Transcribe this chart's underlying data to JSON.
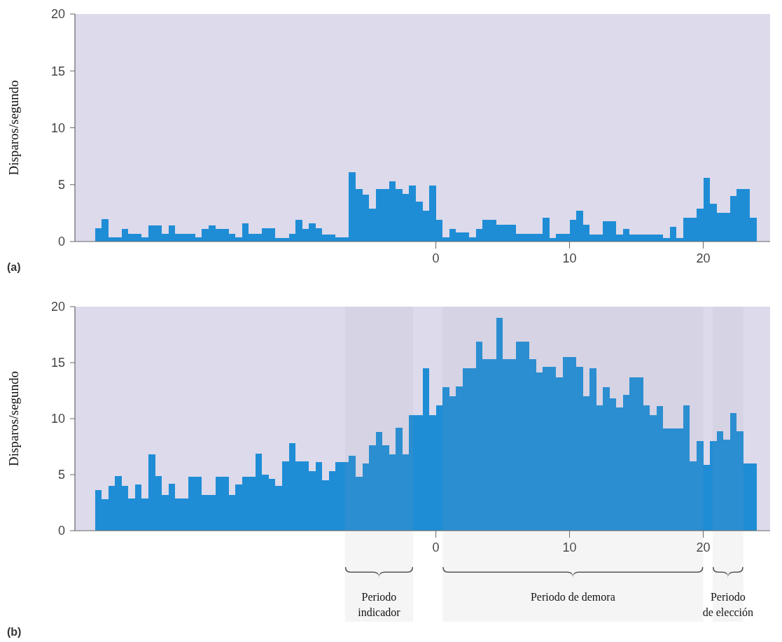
{
  "chart_data": [
    {
      "type": "histogram",
      "ylabel": "Disparos/segundo",
      "color": "#1f8dd6",
      "bins": [
        -25.5,
        -25,
        -24.5,
        -24,
        -23.5,
        -23,
        -22.5,
        -22,
        -21.5,
        -21,
        -20.5,
        -20,
        -19.5,
        -19,
        -18.5,
        -18,
        -17.5,
        -17,
        -16.5,
        -16,
        -15.5,
        -15,
        -14.5,
        -14,
        -13.5,
        -13,
        -12.5,
        -12,
        -11.5,
        -11,
        -10.5,
        -10,
        -9.5,
        -9,
        -8.5,
        -8,
        -7.5,
        -7,
        -6.5,
        -6,
        -5.5,
        -5,
        -4.5,
        -4,
        -3.5,
        -3,
        -2.5,
        -2,
        -1.5,
        -1,
        -0.5,
        0,
        0.5,
        1,
        1.5,
        2,
        2.5,
        3,
        3.5,
        4,
        4.5,
        5,
        5.5,
        6,
        6.5,
        7,
        7.5,
        8,
        8.5,
        9,
        9.5,
        10,
        10.5,
        11,
        11.5,
        12,
        12.5,
        13,
        13.5,
        14,
        14.5,
        15,
        15.5,
        16,
        16.5,
        17,
        17.5,
        18,
        18.5,
        19,
        19.5,
        20,
        20.5,
        21,
        21.5,
        22,
        22.5,
        23,
        23.5,
        24
      ],
      "values": [
        1.2,
        2.0,
        0.4,
        0.4,
        1.1,
        0.7,
        0.7,
        0.4,
        1.4,
        1.4,
        0.7,
        1.4,
        0.7,
        0.7,
        0.7,
        0.4,
        1.1,
        1.4,
        1.1,
        1.1,
        0.7,
        0.4,
        1.6,
        0.7,
        0.7,
        1.2,
        1.2,
        0.3,
        0.3,
        0.7,
        1.9,
        1.1,
        1.6,
        1.2,
        0.6,
        0.6,
        0.4,
        0.4,
        6.1,
        4.6,
        4.1,
        2.9,
        4.6,
        4.6,
        5.3,
        4.6,
        4.2,
        4.9,
        3.5,
        2.7,
        4.9,
        1.9,
        0.4,
        1.1,
        0.8,
        0.8,
        0.4,
        1.1,
        1.9,
        1.9,
        1.5,
        1.5,
        1.5,
        0.7,
        0.7,
        0.7,
        0.7,
        2.1,
        0.3,
        0.7,
        0.7,
        1.9,
        2.7,
        1.5,
        0.6,
        0.6,
        1.8,
        1.8,
        0.6,
        1.1,
        0.6,
        0.6,
        0.6,
        0.6,
        0.6,
        0.3,
        1.3,
        0.3,
        2.1,
        2.1,
        2.9,
        5.6,
        3.3,
        2.5,
        2.5,
        4.0,
        4.6,
        4.6,
        2.1
      ],
      "xlim": [
        -27,
        25
      ],
      "xticks": [
        0,
        10,
        20
      ],
      "ylim": [
        0,
        20
      ],
      "yticks": [
        0,
        5,
        10,
        15,
        20
      ],
      "annotations": [
        "(a)"
      ]
    },
    {
      "type": "histogram",
      "ylabel": "Disparos/segundo",
      "color": "#1f8dd6",
      "bins": [
        -25.5,
        -25,
        -24.5,
        -24,
        -23.5,
        -23,
        -22.5,
        -22,
        -21.5,
        -21,
        -20.5,
        -20,
        -19.5,
        -19,
        -18.5,
        -18,
        -17.5,
        -17,
        -16.5,
        -16,
        -15.5,
        -15,
        -14.5,
        -14,
        -13.5,
        -13,
        -12.5,
        -12,
        -11.5,
        -11,
        -10.5,
        -10,
        -9.5,
        -9,
        -8.5,
        -8,
        -7.5,
        -7,
        -6.5,
        -6,
        -5.5,
        -5,
        -4.5,
        -4,
        -3.5,
        -3,
        -2.5,
        -2,
        -1.5,
        -1,
        -0.5,
        0,
        0.5,
        1,
        1.5,
        2,
        2.5,
        3,
        3.5,
        4,
        4.5,
        5,
        5.5,
        6,
        6.5,
        7,
        7.5,
        8,
        8.5,
        9,
        9.5,
        10,
        10.5,
        11,
        11.5,
        12,
        12.5,
        13,
        13.5,
        14,
        14.5,
        15,
        15.5,
        16,
        16.5,
        17,
        17.5,
        18,
        18.5,
        19,
        19.5,
        20,
        20.5,
        21,
        21.5,
        22,
        22.5,
        23,
        23.5,
        24
      ],
      "values": [
        3.6,
        2.8,
        4.0,
        4.9,
        4.0,
        2.9,
        4.1,
        2.9,
        6.8,
        4.9,
        3.2,
        4.2,
        2.9,
        2.9,
        4.8,
        4.8,
        3.2,
        3.2,
        4.8,
        4.8,
        3.2,
        4.1,
        4.8,
        4.8,
        6.9,
        5.0,
        4.6,
        4.0,
        6.2,
        7.8,
        6.2,
        6.2,
        5.3,
        6.1,
        4.5,
        5.3,
        6.1,
        6.1,
        6.7,
        4.8,
        6.0,
        7.6,
        8.8,
        7.6,
        6.8,
        9.2,
        6.8,
        10.3,
        10.3,
        14.5,
        10.3,
        11.2,
        12.8,
        12.0,
        12.9,
        14.5,
        14.5,
        16.9,
        15.3,
        15.3,
        19.0,
        15.3,
        15.3,
        16.9,
        16.9,
        15.3,
        14.1,
        14.6,
        14.6,
        13.7,
        15.5,
        15.5,
        14.6,
        12.0,
        14.5,
        11.2,
        12.8,
        11.8,
        11.0,
        12.1,
        13.7,
        13.7,
        11.2,
        10.3,
        11.1,
        9.1,
        9.1,
        9.1,
        11.2,
        6.2,
        8.0,
        5.9,
        8.0,
        8.9,
        8.1,
        10.5,
        8.9,
        6.0,
        6.0
      ],
      "xlim": [
        -27,
        25
      ],
      "xticks": [
        0,
        10,
        20
      ],
      "ylim": [
        0,
        20
      ],
      "yticks": [
        0,
        5,
        10,
        15,
        20
      ],
      "bands": [
        {
          "axis": "x",
          "from": -6.8,
          "to": -1.7,
          "label": "Periodo indicador"
        },
        {
          "axis": "x",
          "from": 0.5,
          "to": 20,
          "label": "Periodo de demora"
        },
        {
          "axis": "x",
          "from": 20.7,
          "to": 23,
          "label": "Periodo de elección"
        }
      ],
      "annotations": [
        "(b)"
      ]
    }
  ]
}
